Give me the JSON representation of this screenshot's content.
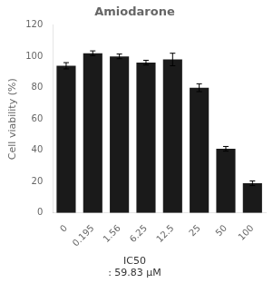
{
  "chart_data": {
    "type": "bar",
    "title": "Amiodarone",
    "ylabel": "Cell viability (%)",
    "categories": [
      "0",
      "0.195",
      "1.56",
      "6.25",
      "12.5",
      "25",
      "50",
      "100"
    ],
    "values": [
      94,
      102,
      100,
      96,
      98,
      80,
      41,
      19
    ],
    "errors": [
      2.0,
      1.5,
      1.5,
      1.5,
      4.0,
      2.5,
      1.5,
      1.5
    ],
    "color": "#1a1a1a",
    "ylim": [
      0,
      120
    ],
    "yticks": [
      0,
      20,
      40,
      60,
      80,
      100,
      120
    ],
    "annotations": [
      "IC50",
      ": 59.83 μM"
    ],
    "grid": false
  }
}
